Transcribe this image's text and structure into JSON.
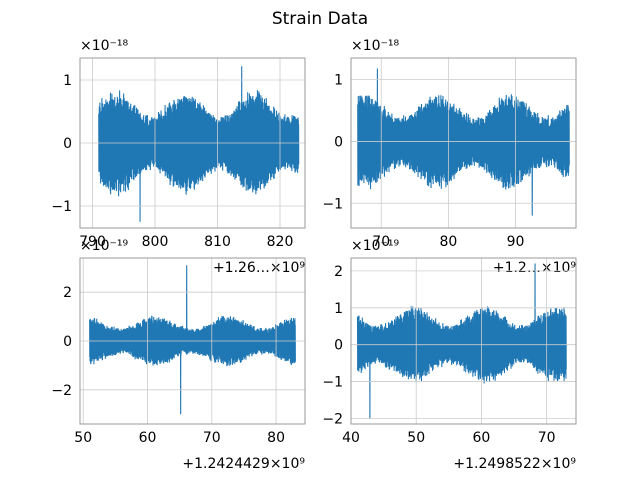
{
  "figure_title": "Strain Data",
  "series_color": "#1f77b4",
  "chart_data": [
    {
      "type": "line",
      "title": "",
      "grid": true,
      "xlim": [
        788,
        824
      ],
      "ylim": [
        -1.35,
        1.35
      ],
      "x_ticks": [
        790,
        800,
        810,
        820
      ],
      "x_tick_labels": [
        "790",
        "800",
        "810",
        "820"
      ],
      "x_offset_label": "+1.26…×10⁹",
      "y_ticks": [
        -1,
        0,
        1
      ],
      "y_tick_labels": [
        "−1",
        "0",
        "1"
      ],
      "y_scale_label": "×10⁻¹⁸",
      "signal": {
        "x_start": 791,
        "x_end": 823,
        "typical_amplitude": 0.8,
        "peak_min": -1.25,
        "peak_max": 1.22
      }
    },
    {
      "type": "line",
      "title": "",
      "grid": true,
      "xlim": [
        65.5,
        99
      ],
      "ylim": [
        -1.4,
        1.35
      ],
      "x_ticks": [
        70,
        80,
        90
      ],
      "x_tick_labels": [
        "70",
        "80",
        "90"
      ],
      "x_offset_label": "+1.2…×10⁹",
      "y_ticks": [
        -1,
        0,
        1
      ],
      "y_tick_labels": [
        "−1",
        "0",
        "1"
      ],
      "y_scale_label": "×10⁻¹⁸",
      "signal": {
        "x_start": 66.5,
        "x_end": 98,
        "typical_amplitude": 0.75,
        "peak_min": -1.2,
        "peak_max": 1.18
      }
    },
    {
      "type": "line",
      "title": "",
      "grid": true,
      "xlim": [
        49.5,
        84.5
      ],
      "ylim": [
        -3.4,
        3.4
      ],
      "x_ticks": [
        50,
        60,
        70,
        80
      ],
      "x_tick_labels": [
        "50",
        "60",
        "70",
        "80"
      ],
      "x_offset_label": "+1.2424429×10⁹",
      "y_ticks": [
        -2,
        0,
        2
      ],
      "y_tick_labels": [
        "−2",
        "0",
        "2"
      ],
      "y_scale_label": "×10⁻¹⁹",
      "signal": {
        "x_start": 51,
        "x_end": 83,
        "typical_amplitude": 1.0,
        "peak_min": -3.0,
        "peak_max": 3.1
      }
    },
    {
      "type": "line",
      "title": "",
      "grid": true,
      "xlim": [
        40,
        74.5
      ],
      "ylim": [
        -2.15,
        2.35
      ],
      "x_ticks": [
        40,
        50,
        60,
        70
      ],
      "x_tick_labels": [
        "40",
        "50",
        "60",
        "70"
      ],
      "x_offset_label": "+1.2498522×10⁹",
      "y_ticks": [
        -2,
        -1,
        0,
        1,
        2
      ],
      "y_tick_labels": [
        "−2",
        "−1",
        "0",
        "1",
        "2"
      ],
      "y_scale_label": "×10⁻¹⁹",
      "signal": {
        "x_start": 41,
        "x_end": 73,
        "typical_amplitude": 1.0,
        "peak_min": -2.0,
        "peak_max": 2.2
      }
    }
  ]
}
